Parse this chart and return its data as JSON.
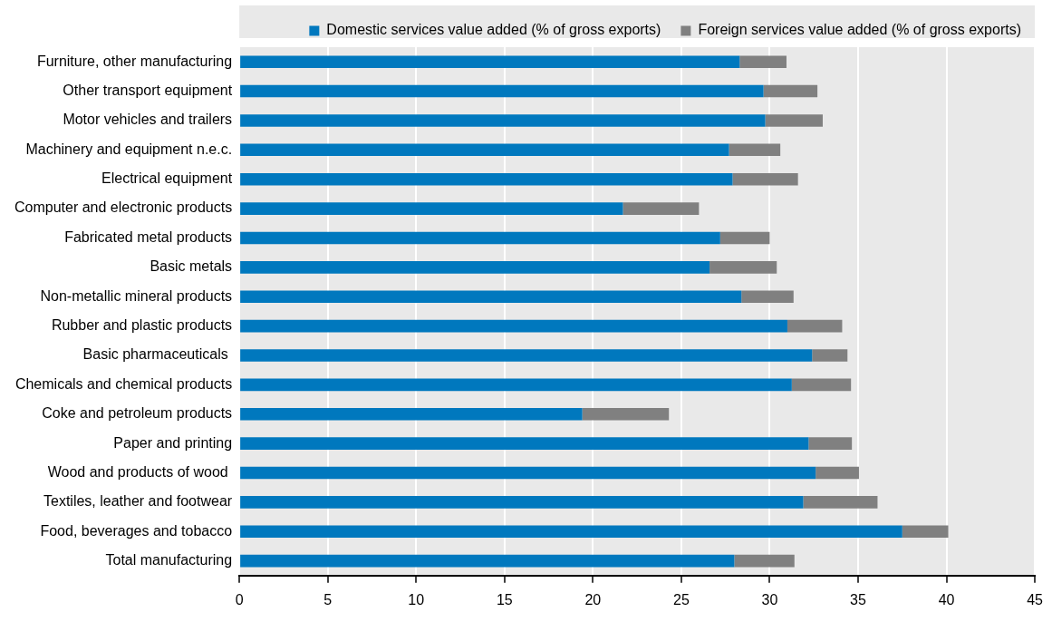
{
  "chart_data": {
    "type": "bar",
    "orientation": "horizontal",
    "stacked": true,
    "legend": "top",
    "grid": "x",
    "categories": [
      "Furniture, other manufacturing",
      "Other transport equipment",
      "Motor vehicles and trailers",
      "Machinery and equipment n.e.c.",
      "Electrical equipment",
      "Computer and electronic products",
      "Fabricated metal products",
      "Basic metals",
      "Non-metallic mineral products",
      "Rubber and plastic products",
      "Basic pharmaceuticals ",
      "Chemicals and chemical products",
      "Coke and petroleum products",
      "Paper and printing",
      "Wood and products of wood ",
      "Textiles, leather and footwear",
      "Food, beverages and tobacco",
      "Total manufacturing"
    ],
    "series": [
      {
        "name": "Domestic services value added (% of gross exports)",
        "color": "#0078be",
        "values": [
          28.3,
          29.65,
          29.75,
          27.7,
          27.9,
          21.7,
          27.2,
          26.6,
          28.4,
          31.0,
          32.4,
          31.25,
          19.4,
          32.2,
          32.6,
          31.9,
          37.5,
          28.0
        ]
      },
      {
        "name": "Foreign services value added (% of gross exports)",
        "color": "#808080",
        "values": [
          2.65,
          3.05,
          3.25,
          2.9,
          3.7,
          4.3,
          2.8,
          3.8,
          2.95,
          3.1,
          2.0,
          3.35,
          4.9,
          2.45,
          2.45,
          4.2,
          2.6,
          3.4
        ]
      }
    ],
    "xlim": [
      0,
      45
    ],
    "xticks": [
      0,
      5,
      10,
      15,
      20,
      25,
      30,
      35,
      40,
      45
    ]
  }
}
